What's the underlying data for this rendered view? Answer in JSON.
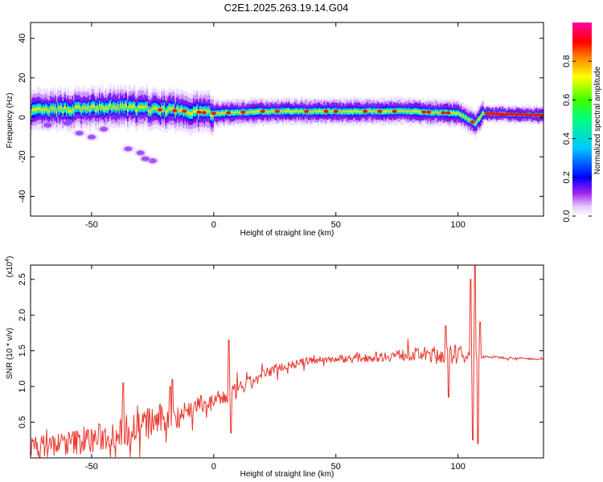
{
  "title": "C2E1.2025.263.19.14.G04",
  "colors": {
    "snr_line": "#e8392f",
    "frame": "#000000"
  },
  "chart_data": [
    {
      "type": "heatmap",
      "name": "spectrogram",
      "xlabel": "Height of straight line (km)",
      "ylabel": "Frequency (Hz)",
      "xlim": [
        -75,
        135
      ],
      "ylim": [
        -50,
        48
      ],
      "xticks": [
        -50,
        0,
        50,
        100
      ],
      "xtick_labels": [
        "-50",
        "0",
        "50",
        "100"
      ],
      "yticks": [
        -40,
        -20,
        0,
        20,
        40
      ],
      "ytick_labels": [
        "-40",
        "-20",
        "0",
        "20",
        "40"
      ],
      "colorbar": {
        "label": "Normalized spectral amplitude",
        "range": [
          0,
          1
        ],
        "ticks": [
          0.0,
          0.2,
          0.4,
          0.6,
          0.8
        ],
        "tick_labels": [
          "0.0",
          "0.2",
          "0.4",
          "0.6",
          "0.8"
        ]
      },
      "ridge": [
        {
          "x": -75,
          "f": 3
        },
        {
          "x": -60,
          "f": 4
        },
        {
          "x": -40,
          "f": 5
        },
        {
          "x": -25,
          "f": 4
        },
        {
          "x": -10,
          "f": 3
        },
        {
          "x": 0,
          "f": 2
        },
        {
          "x": 20,
          "f": 3
        },
        {
          "x": 50,
          "f": 3
        },
        {
          "x": 80,
          "f": 3
        },
        {
          "x": 100,
          "f": 2
        },
        {
          "x": 107,
          "f": -3
        },
        {
          "x": 110,
          "f": 2
        },
        {
          "x": 135,
          "f": 1
        }
      ],
      "scatter_features": [
        {
          "x": -50,
          "f": -10
        },
        {
          "x": -55,
          "f": -8
        },
        {
          "x": -45,
          "f": -6
        },
        {
          "x": -35,
          "f": -16
        },
        {
          "x": -30,
          "f": -18
        },
        {
          "x": -25,
          "f": -22
        },
        {
          "x": -28,
          "f": -21
        },
        {
          "x": -68,
          "f": -4
        },
        {
          "x": -60,
          "f": -3
        }
      ]
    },
    {
      "type": "line",
      "name": "snr",
      "xlabel": "Height of straight line (km)",
      "ylabel": "SNR (10 * v/v)",
      "scale_label": "(x10",
      "scale_exponent": "4",
      "scale_suffix": ")",
      "xlim": [
        -75,
        135
      ],
      "ylim": [
        0,
        2.7
      ],
      "xticks": [
        -50,
        0,
        50,
        100
      ],
      "xtick_labels": [
        "-50",
        "0",
        "50",
        "100"
      ],
      "yticks": [
        0.5,
        1.0,
        1.5,
        2.0,
        2.5
      ],
      "ytick_labels": [
        "0.5",
        "1.0",
        "1.5",
        "2.0",
        "2.5"
      ],
      "envelope": [
        {
          "x": -75,
          "base": 0.15,
          "noise": 0.15
        },
        {
          "x": -50,
          "base": 0.25,
          "noise": 0.2
        },
        {
          "x": -30,
          "base": 0.45,
          "noise": 0.25
        },
        {
          "x": -15,
          "base": 0.6,
          "noise": 0.2
        },
        {
          "x": -5,
          "base": 0.75,
          "noise": 0.12
        },
        {
          "x": 5,
          "base": 0.85,
          "noise": 0.12
        },
        {
          "x": 15,
          "base": 1.05,
          "noise": 0.1
        },
        {
          "x": 25,
          "base": 1.25,
          "noise": 0.07
        },
        {
          "x": 40,
          "base": 1.37,
          "noise": 0.05
        },
        {
          "x": 60,
          "base": 1.4,
          "noise": 0.06
        },
        {
          "x": 80,
          "base": 1.45,
          "noise": 0.09
        },
        {
          "x": 100,
          "base": 1.45,
          "noise": 0.14
        },
        {
          "x": 109,
          "base": 1.42,
          "noise": 0.02
        },
        {
          "x": 135,
          "base": 1.38,
          "noise": 0.01
        }
      ],
      "spikes": [
        {
          "x": -37,
          "y": 1.05
        },
        {
          "x": -18,
          "y": 1.0
        },
        {
          "x": -17,
          "y": 1.1
        },
        {
          "x": 6,
          "y": 1.65
        },
        {
          "x": 7,
          "y": 0.35
        },
        {
          "x": 95,
          "y": 1.85
        },
        {
          "x": 96,
          "y": 0.85
        },
        {
          "x": 105,
          "y": 2.5
        },
        {
          "x": 106,
          "y": 0.25
        },
        {
          "x": 107,
          "y": 2.7
        },
        {
          "x": 108,
          "y": 0.2
        },
        {
          "x": 109,
          "y": 1.9
        }
      ]
    }
  ]
}
